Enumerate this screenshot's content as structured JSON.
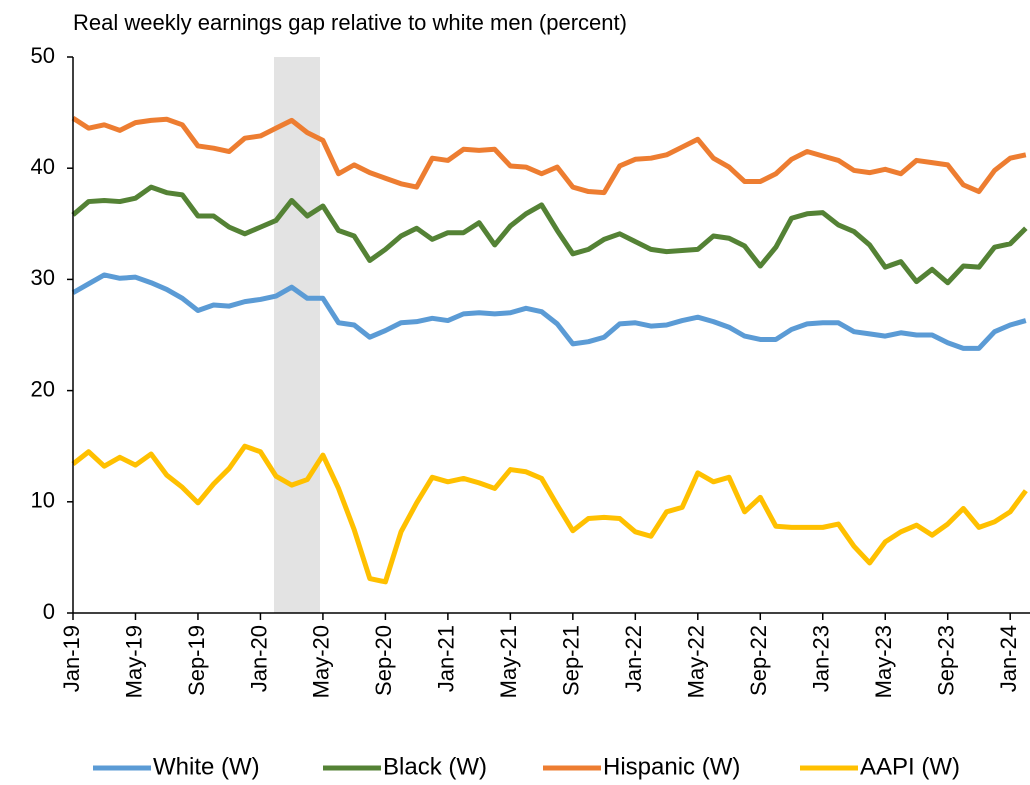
{
  "chart_data": {
    "type": "line",
    "title": "Real weekly earnings gap relative to white men (percent)",
    "categories": [
      "Jan-19",
      null,
      null,
      null,
      "May-19",
      null,
      null,
      null,
      "Sep-19",
      null,
      null,
      null,
      "Jan-20",
      null,
      null,
      null,
      "May-20",
      null,
      null,
      null,
      "Sep-20",
      null,
      null,
      null,
      "Jan-21",
      null,
      null,
      null,
      "May-21",
      null,
      null,
      null,
      "Sep-21",
      null,
      null,
      null,
      "Jan-22",
      null,
      null,
      null,
      "May-22",
      null,
      null,
      null,
      "Sep-22",
      null,
      null,
      null,
      "Jan-23",
      null,
      null,
      null,
      "May-23",
      null,
      null,
      null,
      "Sep-23",
      null,
      null,
      null,
      "Jan-24",
      null
    ],
    "series": [
      {
        "name": "White (W)",
        "color": "#5b9bd5",
        "values": [
          28.8,
          29.6,
          30.4,
          30.1,
          30.2,
          29.7,
          29.1,
          28.3,
          27.2,
          27.7,
          27.6,
          28.0,
          28.2,
          28.5,
          29.3,
          28.3,
          28.3,
          26.1,
          25.9,
          24.8,
          25.4,
          26.1,
          26.2,
          26.5,
          26.3,
          26.9,
          27.0,
          26.9,
          27.0,
          27.4,
          27.1,
          26.0,
          24.2,
          24.4,
          24.8,
          26.0,
          26.1,
          25.8,
          25.9,
          26.3,
          26.6,
          26.2,
          25.7,
          24.9,
          24.6,
          24.6,
          25.5,
          26.0,
          26.1,
          26.1,
          25.3,
          25.1,
          24.9,
          25.2,
          25.0,
          25.0,
          24.3,
          23.8,
          23.8,
          25.3,
          25.9,
          26.3
        ]
      },
      {
        "name": "Black (W)",
        "color": "#548235",
        "values": [
          35.8,
          37.0,
          37.1,
          37.0,
          37.3,
          38.3,
          37.8,
          37.6,
          35.7,
          35.7,
          34.7,
          34.1,
          34.7,
          35.3,
          37.1,
          35.7,
          36.6,
          34.4,
          33.9,
          31.7,
          32.7,
          33.9,
          34.6,
          33.6,
          34.2,
          34.2,
          35.1,
          33.1,
          34.8,
          35.9,
          36.7,
          34.4,
          32.3,
          32.7,
          33.6,
          34.1,
          33.4,
          32.7,
          32.5,
          32.6,
          32.7,
          33.9,
          33.7,
          33.0,
          31.2,
          32.9,
          35.5,
          35.9,
          36.0,
          34.9,
          34.3,
          33.1,
          31.1,
          31.6,
          29.8,
          30.9,
          29.7,
          31.2,
          31.1,
          32.9,
          33.2,
          34.6
        ]
      },
      {
        "name": "Hispanic (W)",
        "color": "#ed7d31",
        "values": [
          44.5,
          43.6,
          43.9,
          43.4,
          44.1,
          44.3,
          44.4,
          43.9,
          42.0,
          41.8,
          41.5,
          42.7,
          42.9,
          43.6,
          44.3,
          43.2,
          42.5,
          39.5,
          40.3,
          39.6,
          39.1,
          38.6,
          38.3,
          40.9,
          40.7,
          41.7,
          41.6,
          41.7,
          40.2,
          40.1,
          39.5,
          40.1,
          38.3,
          37.9,
          37.8,
          40.2,
          40.8,
          40.9,
          41.2,
          41.9,
          42.6,
          40.9,
          40.1,
          38.8,
          38.8,
          39.5,
          40.8,
          41.5,
          41.1,
          40.7,
          39.8,
          39.6,
          39.9,
          39.5,
          40.7,
          40.5,
          40.3,
          38.5,
          37.9,
          39.8,
          40.9,
          41.2
        ]
      },
      {
        "name": "AAPI (W)",
        "color": "#ffc000",
        "values": [
          13.4,
          14.5,
          13.2,
          14.0,
          13.3,
          14.3,
          12.4,
          11.3,
          9.9,
          11.6,
          13.0,
          15.0,
          14.5,
          12.3,
          11.5,
          12.0,
          14.2,
          11.2,
          7.5,
          3.1,
          2.8,
          7.3,
          9.9,
          12.2,
          11.8,
          12.1,
          11.7,
          11.2,
          12.9,
          12.7,
          12.1,
          9.7,
          7.4,
          8.5,
          8.6,
          8.5,
          7.3,
          6.9,
          9.1,
          9.5,
          12.6,
          11.8,
          12.2,
          9.1,
          10.4,
          7.8,
          7.7,
          7.7,
          7.7,
          8.0,
          6.0,
          4.5,
          6.4,
          7.3,
          7.9,
          7.0,
          8.0,
          9.4,
          7.7,
          8.2,
          9.1,
          11.0
        ]
      }
    ],
    "ylim": [
      0,
      50
    ],
    "yticks": [
      0,
      10,
      20,
      30,
      40,
      50
    ],
    "legend": "bottom"
  }
}
